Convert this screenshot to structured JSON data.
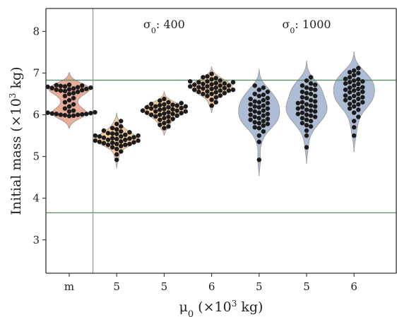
{
  "chart_data": {
    "type": "violin-swarm",
    "categories": [
      "m",
      "5",
      "5",
      "6",
      "5",
      "5",
      "6"
    ],
    "xlabel": {
      "symbol": "μ",
      "sub": "0",
      "unit": " (×10",
      "sup": "3",
      "tail": " kg)"
    },
    "ylabel": {
      "main": "Initial mass (×10",
      "sup": "3",
      "tail": " kg)"
    },
    "ylim": [
      2.2,
      8.55
    ],
    "yticks": [
      3,
      4,
      5,
      6,
      7,
      8
    ],
    "reference_lines": [
      6.83,
      3.65
    ],
    "vertical_divider_after_index": 0,
    "annotations": [
      {
        "symbol": "σ",
        "sub": "0",
        "value": ": 400",
        "x_index": 2.0,
        "y": 8.08
      },
      {
        "symbol": "σ",
        "sub": "0",
        "value": ": 1000",
        "x_index": 5.0,
        "y": 8.08
      }
    ],
    "colors": {
      "violin_m": "#e8a890",
      "violin_sigma400": "#f5c898",
      "violin_sigma1000": "#a9b9d4",
      "violin_edge": "#a0a0a0",
      "points": "#1a1a1a",
      "reference_line": "#5a8a6a",
      "divider": "#999999"
    },
    "series": [
      {
        "category_index": 0,
        "color_key": "violin_m",
        "values": [
          6.65,
          6.7,
          6.6,
          6.68,
          6.62,
          6.55,
          6.72,
          6.64,
          6.66,
          6.58,
          6.63,
          6.69,
          6.61,
          6.67,
          6.52,
          6.45,
          6.35,
          6.25,
          6.15,
          6.05,
          6.02,
          6.0,
          5.98,
          6.03,
          6.01,
          5.99,
          6.04,
          6.0,
          6.06,
          6.02,
          5.97,
          6.08,
          6.1,
          6.2,
          6.3,
          6.4,
          6.5,
          6.57,
          6.71,
          6.59
        ]
      },
      {
        "category_index": 1,
        "color_key": "violin_sigma400",
        "values": [
          4.92,
          5.05,
          5.12,
          5.18,
          5.22,
          5.25,
          5.28,
          5.3,
          5.32,
          5.34,
          5.36,
          5.38,
          5.4,
          5.42,
          5.44,
          5.46,
          5.48,
          5.5,
          5.52,
          5.54,
          5.56,
          5.58,
          5.6,
          5.62,
          5.65,
          5.68,
          5.72,
          5.78,
          5.85,
          5.3,
          5.35,
          5.4,
          5.45,
          5.5,
          5.55,
          5.28,
          5.33,
          5.38,
          5.43,
          5.48
        ]
      },
      {
        "category_index": 2,
        "color_key": "violin_sigma400",
        "values": [
          5.68,
          5.72,
          5.76,
          5.8,
          5.84,
          5.88,
          5.92,
          5.96,
          6.0,
          6.02,
          6.04,
          6.06,
          6.08,
          6.1,
          6.12,
          6.14,
          6.16,
          6.18,
          6.2,
          6.22,
          6.24,
          6.26,
          6.28,
          6.3,
          6.34,
          6.38,
          5.9,
          5.95,
          6.0,
          6.05,
          6.1,
          6.15,
          6.2,
          6.25,
          5.98,
          6.03,
          6.08,
          6.13,
          6.18,
          6.23
        ]
      },
      {
        "category_index": 3,
        "color_key": "violin_sigma400",
        "values": [
          6.22,
          6.3,
          6.36,
          6.42,
          6.46,
          6.5,
          6.52,
          6.54,
          6.56,
          6.58,
          6.6,
          6.62,
          6.64,
          6.66,
          6.68,
          6.7,
          6.72,
          6.74,
          6.76,
          6.78,
          6.8,
          6.82,
          6.85,
          6.88,
          6.92,
          6.98,
          6.5,
          6.55,
          6.6,
          6.65,
          6.7,
          6.75,
          6.8,
          6.58,
          6.63,
          6.68,
          6.73,
          6.78,
          6.45,
          6.9
        ]
      },
      {
        "category_index": 4,
        "color_key": "violin_sigma1000",
        "values": [
          4.92,
          5.35,
          5.5,
          5.6,
          5.68,
          5.74,
          5.8,
          5.85,
          5.9,
          5.95,
          6.0,
          6.05,
          6.1,
          6.15,
          6.2,
          6.25,
          6.3,
          6.35,
          6.4,
          6.45,
          6.5,
          6.55,
          6.6,
          6.65,
          6.7,
          5.7,
          5.78,
          5.88,
          5.98,
          6.08,
          6.18,
          6.28,
          6.38,
          6.48,
          5.82,
          5.92,
          6.02,
          6.12,
          6.22,
          6.32
        ]
      },
      {
        "category_index": 5,
        "color_key": "violin_sigma1000",
        "values": [
          5.22,
          5.5,
          5.62,
          5.72,
          5.8,
          5.88,
          5.95,
          6.0,
          6.05,
          6.1,
          6.15,
          6.2,
          6.25,
          6.3,
          6.35,
          6.4,
          6.45,
          6.5,
          6.55,
          6.6,
          6.65,
          6.7,
          6.75,
          6.82,
          6.9,
          5.75,
          5.85,
          5.92,
          6.02,
          6.12,
          6.22,
          6.32,
          6.42,
          6.52,
          6.62,
          6.72,
          5.98,
          6.08,
          6.18,
          6.28
        ]
      },
      {
        "category_index": 6,
        "color_key": "violin_sigma1000",
        "values": [
          5.5,
          5.7,
          5.85,
          5.95,
          6.05,
          6.12,
          6.2,
          6.26,
          6.32,
          6.38,
          6.42,
          6.46,
          6.5,
          6.54,
          6.58,
          6.62,
          6.66,
          6.7,
          6.74,
          6.78,
          6.82,
          6.86,
          6.9,
          6.95,
          7.0,
          7.06,
          7.12,
          6.15,
          6.25,
          6.35,
          6.45,
          6.55,
          6.65,
          6.75,
          6.85,
          6.3,
          6.4,
          6.6,
          6.8,
          7.02
        ]
      }
    ]
  }
}
